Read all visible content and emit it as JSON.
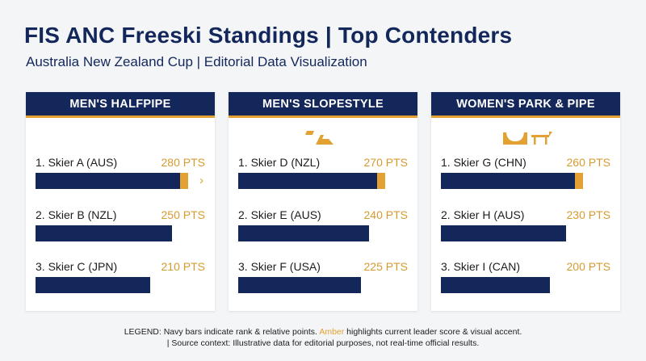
{
  "header": {
    "title": "FIS ANC Freeski Standings | Top Contenders",
    "subtitle": "Australia New Zealand Cup | Editorial Data Visualization"
  },
  "colors": {
    "navy": "#13275a",
    "amber": "#e2a132",
    "points_text": "#d69b30"
  },
  "chart_data": [
    {
      "type": "bar",
      "title": "MEN'S HALFPIPE",
      "icon": "none",
      "categories": [
        "1. Skier A (AUS)",
        "2. Skier B (NZL)",
        "3. Skier C (JPN)"
      ],
      "values": [
        280,
        250,
        210
      ],
      "value_labels": [
        "280 PTS",
        "250 PTS",
        "210 PTS"
      ],
      "leader_accent": true,
      "leader_arrow": true,
      "xlim": [
        0,
        290
      ]
    },
    {
      "type": "bar",
      "title": "MEN'S SLOPESTYLE",
      "icon": "slopestyle-jump-icon",
      "categories": [
        "1. Skier D (NZL)",
        "2. Skier E (AUS)",
        "3. Skier F (USA)"
      ],
      "values": [
        270,
        240,
        225
      ],
      "value_labels": [
        "270 PTS",
        "240 PTS",
        "225 PTS"
      ],
      "leader_accent": true,
      "leader_arrow": false,
      "xlim": [
        0,
        290
      ]
    },
    {
      "type": "bar",
      "title": "WOMEN'S PARK & PIPE",
      "icon": "halfpipe-rail-icon",
      "categories": [
        "1. Skier G (CHN)",
        "2. Skier H (AUS)",
        "3. Skier I (CAN)"
      ],
      "values": [
        260,
        230,
        200
      ],
      "value_labels": [
        "260 PTS",
        "230 PTS",
        "200 PTS"
      ],
      "leader_accent": true,
      "leader_arrow": false,
      "xlim": [
        0,
        290
      ]
    }
  ],
  "legend": {
    "part1": "LEGEND: Navy bars indicate rank & relative points.",
    "amber_word": "Amber",
    "part2": "highlights current leader score & visual accent.",
    "line2": "| Source context: Illustrative data for editorial purposes, not real-time official results."
  }
}
